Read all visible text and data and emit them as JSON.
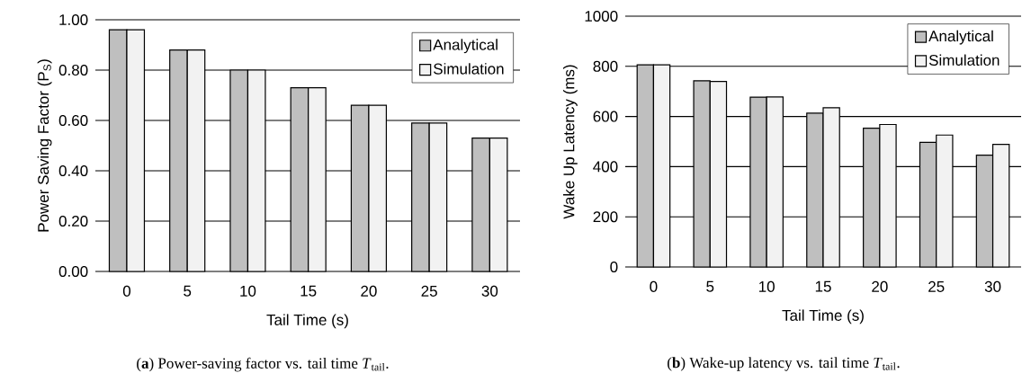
{
  "chart_data": [
    {
      "type": "bar",
      "xlabel": "Tail Time (s)",
      "ylabel": "Power Saving Factor (P$_{S}$)",
      "categories": [
        "0",
        "5",
        "10",
        "15",
        "20",
        "25",
        "30"
      ],
      "series": [
        {
          "name": "Analytical",
          "color": "#bfbfbf",
          "values": [
            0.96,
            0.88,
            0.8,
            0.73,
            0.66,
            0.59,
            0.53
          ]
        },
        {
          "name": "Simulation",
          "color": "#f2f2f2",
          "values": [
            0.96,
            0.88,
            0.8,
            0.73,
            0.66,
            0.59,
            0.53
          ]
        }
      ],
      "ylim": [
        0,
        1
      ],
      "yticks": [
        {
          "value": 0,
          "label": "0.00"
        },
        {
          "value": 0.2,
          "label": "0.20"
        },
        {
          "value": 0.4,
          "label": "0.40"
        },
        {
          "value": 0.6,
          "label": "0.60"
        },
        {
          "value": 0.8,
          "label": "0.80"
        },
        {
          "value": 1,
          "label": "1.00"
        }
      ],
      "grid": "y",
      "legend": "top right",
      "annotations": [
        "(**a**) Power-saving factor vs. tail time *T*$_{tail}$."
      ]
    },
    {
      "type": "bar",
      "xlabel": "Tail Time (s)",
      "ylabel": "Wake Up Latency (ms)",
      "categories": [
        "0",
        "5",
        "10",
        "15",
        "20",
        "25",
        "30"
      ],
      "series": [
        {
          "name": "Analytical",
          "color": "#bfbfbf",
          "values": [
            806,
            742,
            677,
            613,
            553,
            497,
            446
          ]
        },
        {
          "name": "Simulation",
          "color": "#f2f2f2",
          "values": [
            806,
            740,
            678,
            635,
            568,
            526,
            489
          ]
        }
      ],
      "ylim": [
        0,
        1000
      ],
      "yticks": [
        0,
        200,
        400,
        600,
        800,
        1000
      ],
      "grid": "y",
      "legend": "top right",
      "annotations": [
        "(**b**) Wake-up latency vs. tail time *T*$_{tail}$."
      ]
    }
  ]
}
